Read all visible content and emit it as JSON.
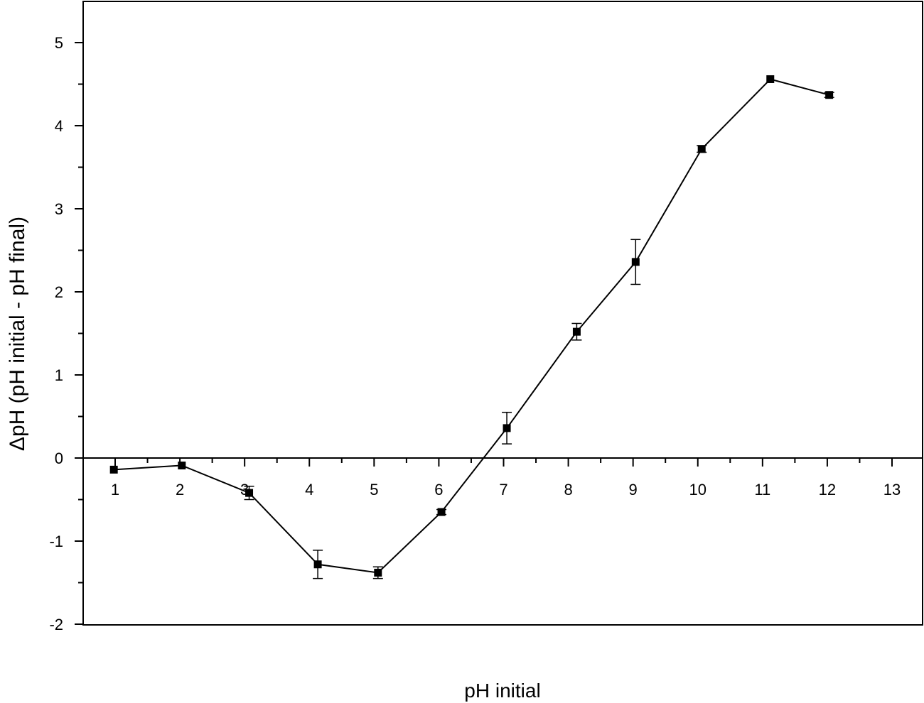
{
  "chart_data": {
    "type": "line",
    "title": "",
    "xlabel": "pH initial",
    "ylabel": "ΔpH (pH initial - pH final)",
    "xlim": [
      0.5,
      13.5
    ],
    "ylim": [
      -2,
      5.5
    ],
    "x_ticks": [
      1,
      2,
      3,
      4,
      5,
      6,
      7,
      8,
      9,
      10,
      11,
      12,
      13
    ],
    "x_tick_labels": [
      "1",
      "2",
      "3",
      "4",
      "5",
      "6",
      "7",
      "8",
      "9",
      "10",
      "11",
      "12",
      "13"
    ],
    "y_ticks": [
      -2,
      -1,
      0,
      1,
      2,
      3,
      4,
      5
    ],
    "y_tick_labels": [
      "-2",
      "-1",
      "0",
      "1",
      "2",
      "3",
      "4",
      "5"
    ],
    "grid": false,
    "legend": false,
    "series": [
      {
        "color": "#000000",
        "marker": "square",
        "x": [
          0.98,
          2.03,
          3.07,
          4.13,
          5.06,
          6.04,
          7.05,
          8.13,
          9.04,
          10.06,
          11.12,
          12.03
        ],
        "y": [
          -0.14,
          -0.09,
          -0.42,
          -1.28,
          -1.38,
          -0.65,
          0.36,
          1.52,
          2.36,
          3.72,
          4.56,
          4.37
        ],
        "error": [
          0.0,
          0.0,
          0.08,
          0.17,
          0.07,
          0.03,
          0.19,
          0.1,
          0.27,
          0.04,
          0.0,
          0.03
        ]
      }
    ]
  }
}
